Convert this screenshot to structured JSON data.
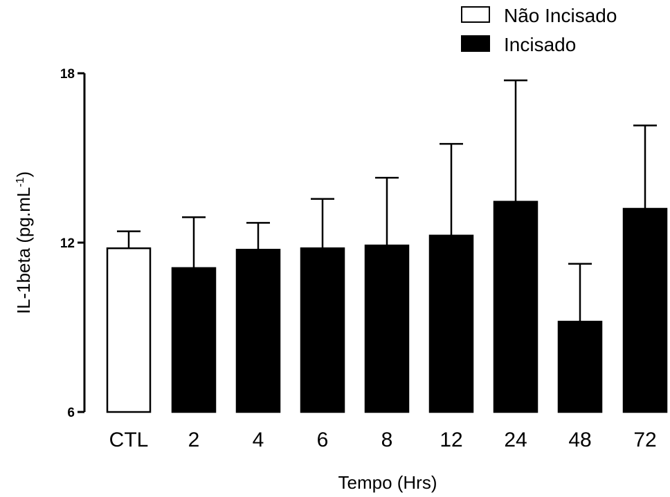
{
  "chart_data": {
    "type": "bar",
    "categories": [
      "CTL",
      "2",
      "4",
      "6",
      "8",
      "12",
      "24",
      "48",
      "72"
    ],
    "series": [
      {
        "name": "Não Incisado",
        "color": "#ffffff",
        "values": [
          11.8,
          null,
          null,
          null,
          null,
          null,
          null,
          null,
          null
        ],
        "errors": [
          0.6,
          null,
          null,
          null,
          null,
          null,
          null,
          null,
          null
        ]
      },
      {
        "name": "Incisado",
        "color": "#000000",
        "values": [
          null,
          11.1,
          11.75,
          11.8,
          11.9,
          12.25,
          13.45,
          9.2,
          13.2
        ],
        "errors": [
          null,
          1.8,
          0.95,
          1.75,
          2.4,
          3.25,
          4.3,
          2.05,
          2.95
        ]
      }
    ],
    "xlabel": "Tempo (Hrs)",
    "ylabel": {
      "base": "IL-1beta (pg.mL",
      "sup": "-1",
      "close": ")"
    },
    "ylim": [
      6,
      18
    ],
    "yticks": [
      "6",
      "12",
      "18"
    ],
    "grid": false,
    "legend_position": "top-right"
  }
}
